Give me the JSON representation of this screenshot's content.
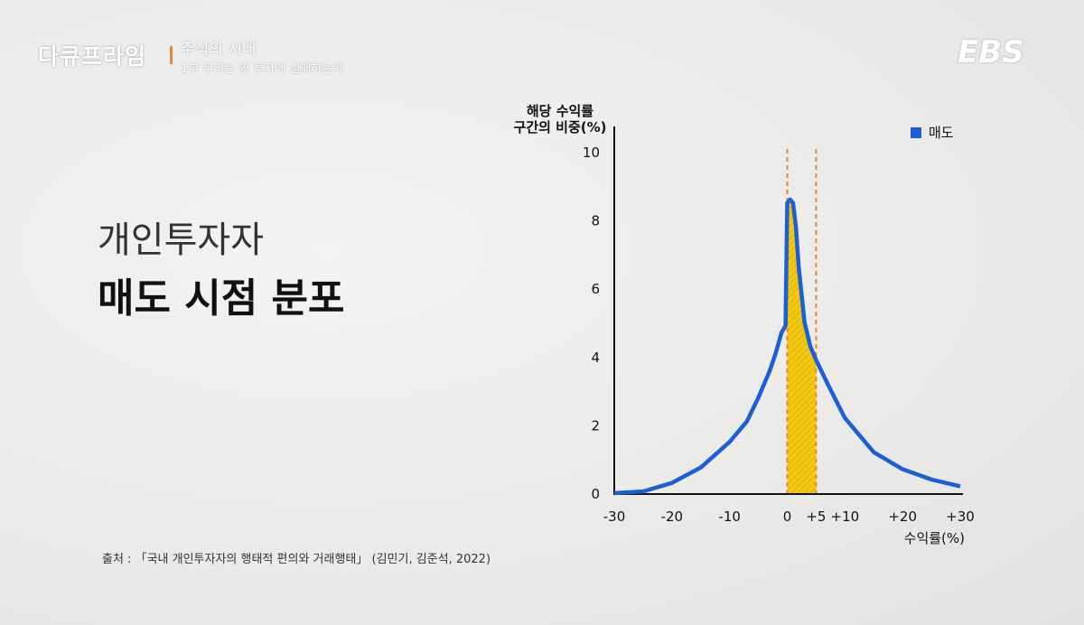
{
  "header": {
    "brand": "다큐프라임",
    "program_title": "주식의 시대",
    "episode": "1부 우리는 왜 투자에 실패하는가",
    "channel": "EBS"
  },
  "headline": {
    "line1": "개인투자자",
    "line2": "매도 시점 분포"
  },
  "source": "출처 : 「국내 개인투자자의 행태적 편의와 거래행태」 (김민기, 김준석, 2022)",
  "chart_data": {
    "type": "line",
    "ylabel_line1": "해당 수익률",
    "ylabel_line2": "구간의 비중(%)",
    "xlabel": "수익률(%)",
    "xlim": [
      -30,
      30
    ],
    "ylim": [
      0,
      10
    ],
    "xticks": [
      {
        "v": -30,
        "label": "-30"
      },
      {
        "v": -20,
        "label": "-20"
      },
      {
        "v": -10,
        "label": "-10"
      },
      {
        "v": 0,
        "label": "0"
      },
      {
        "v": 5,
        "label": "+5"
      },
      {
        "v": 10,
        "label": "+10"
      },
      {
        "v": 20,
        "label": "+20"
      },
      {
        "v": 30,
        "label": "+30"
      }
    ],
    "yticks": [
      {
        "v": 0,
        "label": "0"
      },
      {
        "v": 2,
        "label": "2"
      },
      {
        "v": 4,
        "label": "4"
      },
      {
        "v": 6,
        "label": "6"
      },
      {
        "v": 8,
        "label": "8"
      },
      {
        "v": 10,
        "label": "10"
      }
    ],
    "series": [
      {
        "name": "매도",
        "color": "#1a5fd6",
        "x": [
          -30,
          -25,
          -20,
          -15,
          -10,
          -7,
          -5,
          -3,
          -2,
          -1,
          -0.3,
          0,
          0.5,
          1,
          1.5,
          2,
          3,
          4,
          5,
          7,
          10,
          15,
          20,
          25,
          30
        ],
        "y": [
          0,
          0.05,
          0.3,
          0.75,
          1.5,
          2.1,
          2.8,
          3.6,
          4.1,
          4.7,
          4.9,
          8.5,
          8.6,
          8.5,
          7.8,
          6.6,
          5.0,
          4.3,
          3.9,
          3.2,
          2.2,
          1.2,
          0.7,
          0.4,
          0.2
        ]
      }
    ],
    "highlight_range": [
      0,
      5
    ],
    "highlight_color": "#f2c811",
    "guide_color": "#e8862a"
  }
}
